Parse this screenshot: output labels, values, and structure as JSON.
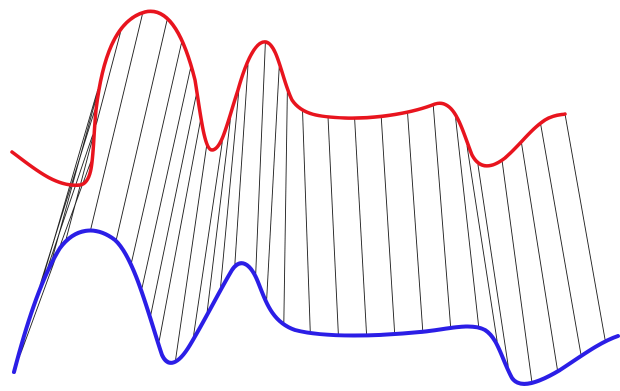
{
  "figure": {
    "background": "#ffffff",
    "connector_count": 33
  },
  "curves": {
    "top": {
      "name": "red-curve",
      "color": "#e8141e"
    },
    "bottom": {
      "name": "blue-curve",
      "color": "#2b1ee6"
    },
    "connectors": {
      "color": "#222222"
    }
  }
}
